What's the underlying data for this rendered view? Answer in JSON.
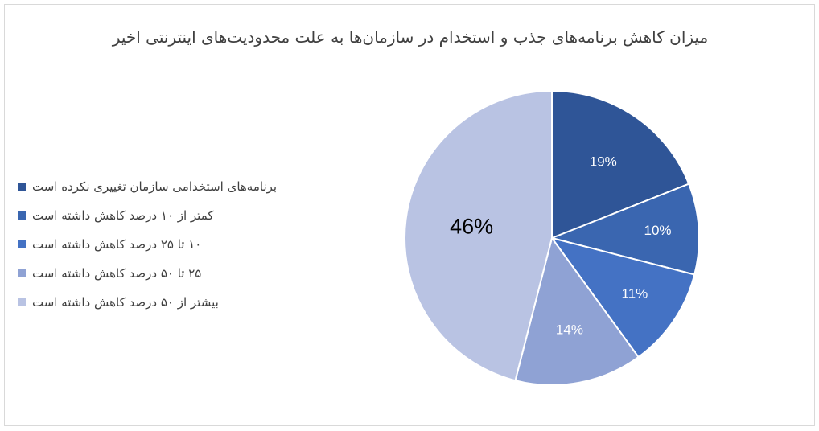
{
  "chart_data": {
    "type": "pie",
    "title": "میزان کاهش برنامه‌های جذب و استخدام در سازمان‌ها به علت محدودیت‌های اینترنتی اخیر",
    "slices": [
      {
        "label": "برنامه‌های استخدامی سازمان تغییری نکرده است",
        "value": 19,
        "display": "19%",
        "color": "#2f5597"
      },
      {
        "label": "کمتر از ۱۰ درصد کاهش داشته است",
        "value": 10,
        "display": "10%",
        "color": "#3a66b0"
      },
      {
        "label": "۱۰ تا ۲۵ درصد کاهش داشته است",
        "value": 11,
        "display": "11%",
        "color": "#4472c4"
      },
      {
        "label": "۲۵ تا ۵۰ درصد کاهش داشته است",
        "value": 14,
        "display": "14%",
        "color": "#8fa2d4"
      },
      {
        "label": "بیشتر از ۵۰ درصد کاهش داشته است",
        "value": 46,
        "display": "46%",
        "color": "#b9c3e3"
      }
    ],
    "legend_position": "left",
    "start_angle": "12 o'clock, clockwise"
  }
}
